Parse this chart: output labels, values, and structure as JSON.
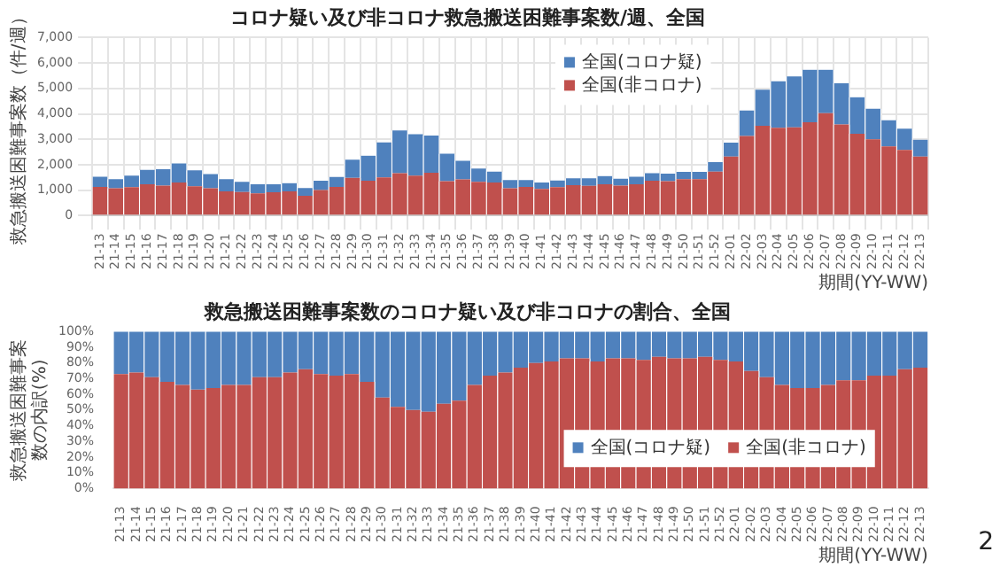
{
  "chart_data": [
    {
      "type": "bar",
      "title": "コロナ疑い及び非コロナ救急搬送困難事案数/週、全国",
      "xlabel": "期間(YY-WW)",
      "ylabel": "救急搬送困難事案数（件/週）",
      "categories": [
        "21-13",
        "21-14",
        "21-15",
        "21-16",
        "21-17",
        "21-18",
        "21-19",
        "21-20",
        "21-21",
        "21-22",
        "21-23",
        "21-24",
        "21-25",
        "21-26",
        "21-27",
        "21-28",
        "21-29",
        "21-30",
        "21-31",
        "21-32",
        "21-33",
        "21-34",
        "21-35",
        "21-36",
        "21-37",
        "21-38",
        "21-39",
        "21-40",
        "21-41",
        "21-42",
        "21-43",
        "21-44",
        "21-45",
        "21-46",
        "21-47",
        "21-48",
        "21-49",
        "21-50",
        "21-51",
        "21-52",
        "22-01",
        "22-02",
        "22-03",
        "22-04",
        "22-05",
        "22-06",
        "22-07",
        "22-08",
        "22-09",
        "22-10",
        "22-11",
        "22-12",
        "22-13"
      ],
      "series": [
        {
          "name": "全国(非コロナ)",
          "color": "#c0504d",
          "values": [
            1130,
            1070,
            1120,
            1230,
            1180,
            1300,
            1150,
            1070,
            950,
            930,
            870,
            920,
            950,
            780,
            1000,
            1130,
            1480,
            1370,
            1500,
            1670,
            1570,
            1680,
            1350,
            1420,
            1330,
            1300,
            1070,
            1130,
            1050,
            1120,
            1200,
            1170,
            1230,
            1180,
            1230,
            1370,
            1350,
            1430,
            1430,
            1730,
            2320,
            3130,
            3530,
            3450,
            3470,
            3670,
            4030,
            3580,
            3220,
            3000,
            2720,
            2580,
            2320
          ]
        },
        {
          "name": "全国(コロナ疑)",
          "color": "#4f81bd",
          "values": [
            400,
            360,
            450,
            570,
            640,
            750,
            630,
            560,
            480,
            400,
            360,
            310,
            320,
            300,
            370,
            390,
            720,
            980,
            1380,
            1680,
            1630,
            1470,
            1080,
            730,
            520,
            430,
            330,
            270,
            250,
            260,
            270,
            300,
            320,
            270,
            300,
            300,
            300,
            290,
            290,
            370,
            550,
            1000,
            1420,
            1830,
            2000,
            2060,
            1700,
            1620,
            1430,
            1200,
            1030,
            840,
            660
          ]
        }
      ],
      "stacked": true,
      "ylim": [
        0,
        7000
      ],
      "yticks": [
        {
          "value": 0,
          "label": "0"
        },
        {
          "value": 1000,
          "label": "1,000"
        },
        {
          "value": 2000,
          "label": "2,000"
        },
        {
          "value": 3000,
          "label": "3,000"
        },
        {
          "value": 4000,
          "label": "4,000"
        },
        {
          "value": 5000,
          "label": "5,000"
        },
        {
          "value": 6000,
          "label": "6,000"
        },
        {
          "value": 7000,
          "label": "7,000"
        }
      ],
      "grid": true,
      "legend": "top right"
    },
    {
      "type": "bar",
      "title": "救急搬送困難事案数のコロナ疑い及び非コロナの割合、全国",
      "xlabel": "期間(YY-WW)",
      "ylabel": "救急搬送困難事案数の内訳(%)",
      "categories": [
        "21-13",
        "21-14",
        "21-15",
        "21-16",
        "21-17",
        "21-18",
        "21-19",
        "21-20",
        "21-21",
        "21-22",
        "21-23",
        "21-24",
        "21-25",
        "21-26",
        "21-27",
        "21-28",
        "21-29",
        "21-30",
        "21-31",
        "21-32",
        "21-33",
        "21-34",
        "21-35",
        "21-36",
        "21-37",
        "21-38",
        "21-39",
        "21-40",
        "21-41",
        "21-42",
        "21-43",
        "21-44",
        "21-45",
        "21-46",
        "21-47",
        "21-48",
        "21-49",
        "21-50",
        "21-51",
        "21-52",
        "22-01",
        "22-02",
        "22-03",
        "22-04",
        "22-05",
        "22-06",
        "22-07",
        "22-08",
        "22-09",
        "22-10",
        "22-11",
        "22-12",
        "22-13"
      ],
      "series": [
        {
          "name": "全国(非コロナ)",
          "color": "#c0504d",
          "values": [
            73,
            74,
            71,
            68,
            66,
            63,
            64,
            66,
            66,
            71,
            71,
            74,
            76,
            73,
            72,
            73,
            68,
            58,
            52,
            50,
            49,
            54,
            56,
            66,
            72,
            74,
            77,
            80,
            81,
            83,
            83,
            81,
            83,
            83,
            82,
            84,
            83,
            83,
            84,
            82,
            81,
            75,
            71,
            66,
            64,
            64,
            66,
            69,
            69,
            72,
            72,
            76,
            77
          ]
        },
        {
          "name": "全国(コロナ疑)",
          "color": "#4f81bd",
          "values": [
            27,
            26,
            29,
            32,
            34,
            37,
            36,
            34,
            34,
            29,
            29,
            26,
            24,
            27,
            28,
            27,
            32,
            42,
            48,
            50,
            51,
            46,
            44,
            34,
            28,
            26,
            23,
            20,
            19,
            17,
            17,
            19,
            17,
            17,
            18,
            16,
            17,
            17,
            16,
            18,
            19,
            25,
            29,
            34,
            36,
            36,
            34,
            31,
            31,
            28,
            28,
            24,
            23
          ]
        }
      ],
      "stacked": true,
      "ylim": [
        0,
        100
      ],
      "yticks": [
        {
          "value": 0,
          "label": "0%"
        },
        {
          "value": 10,
          "label": "10%"
        },
        {
          "value": 20,
          "label": "20%"
        },
        {
          "value": 30,
          "label": "30%"
        },
        {
          "value": 40,
          "label": "40%"
        },
        {
          "value": 50,
          "label": "50%"
        },
        {
          "value": 60,
          "label": "60%"
        },
        {
          "value": 70,
          "label": "70%"
        },
        {
          "value": 80,
          "label": "80%"
        },
        {
          "value": 90,
          "label": "90%"
        },
        {
          "value": 100,
          "label": "100%"
        }
      ],
      "grid": false,
      "legend": "bottom right",
      "annotations": [
        "2"
      ]
    }
  ]
}
